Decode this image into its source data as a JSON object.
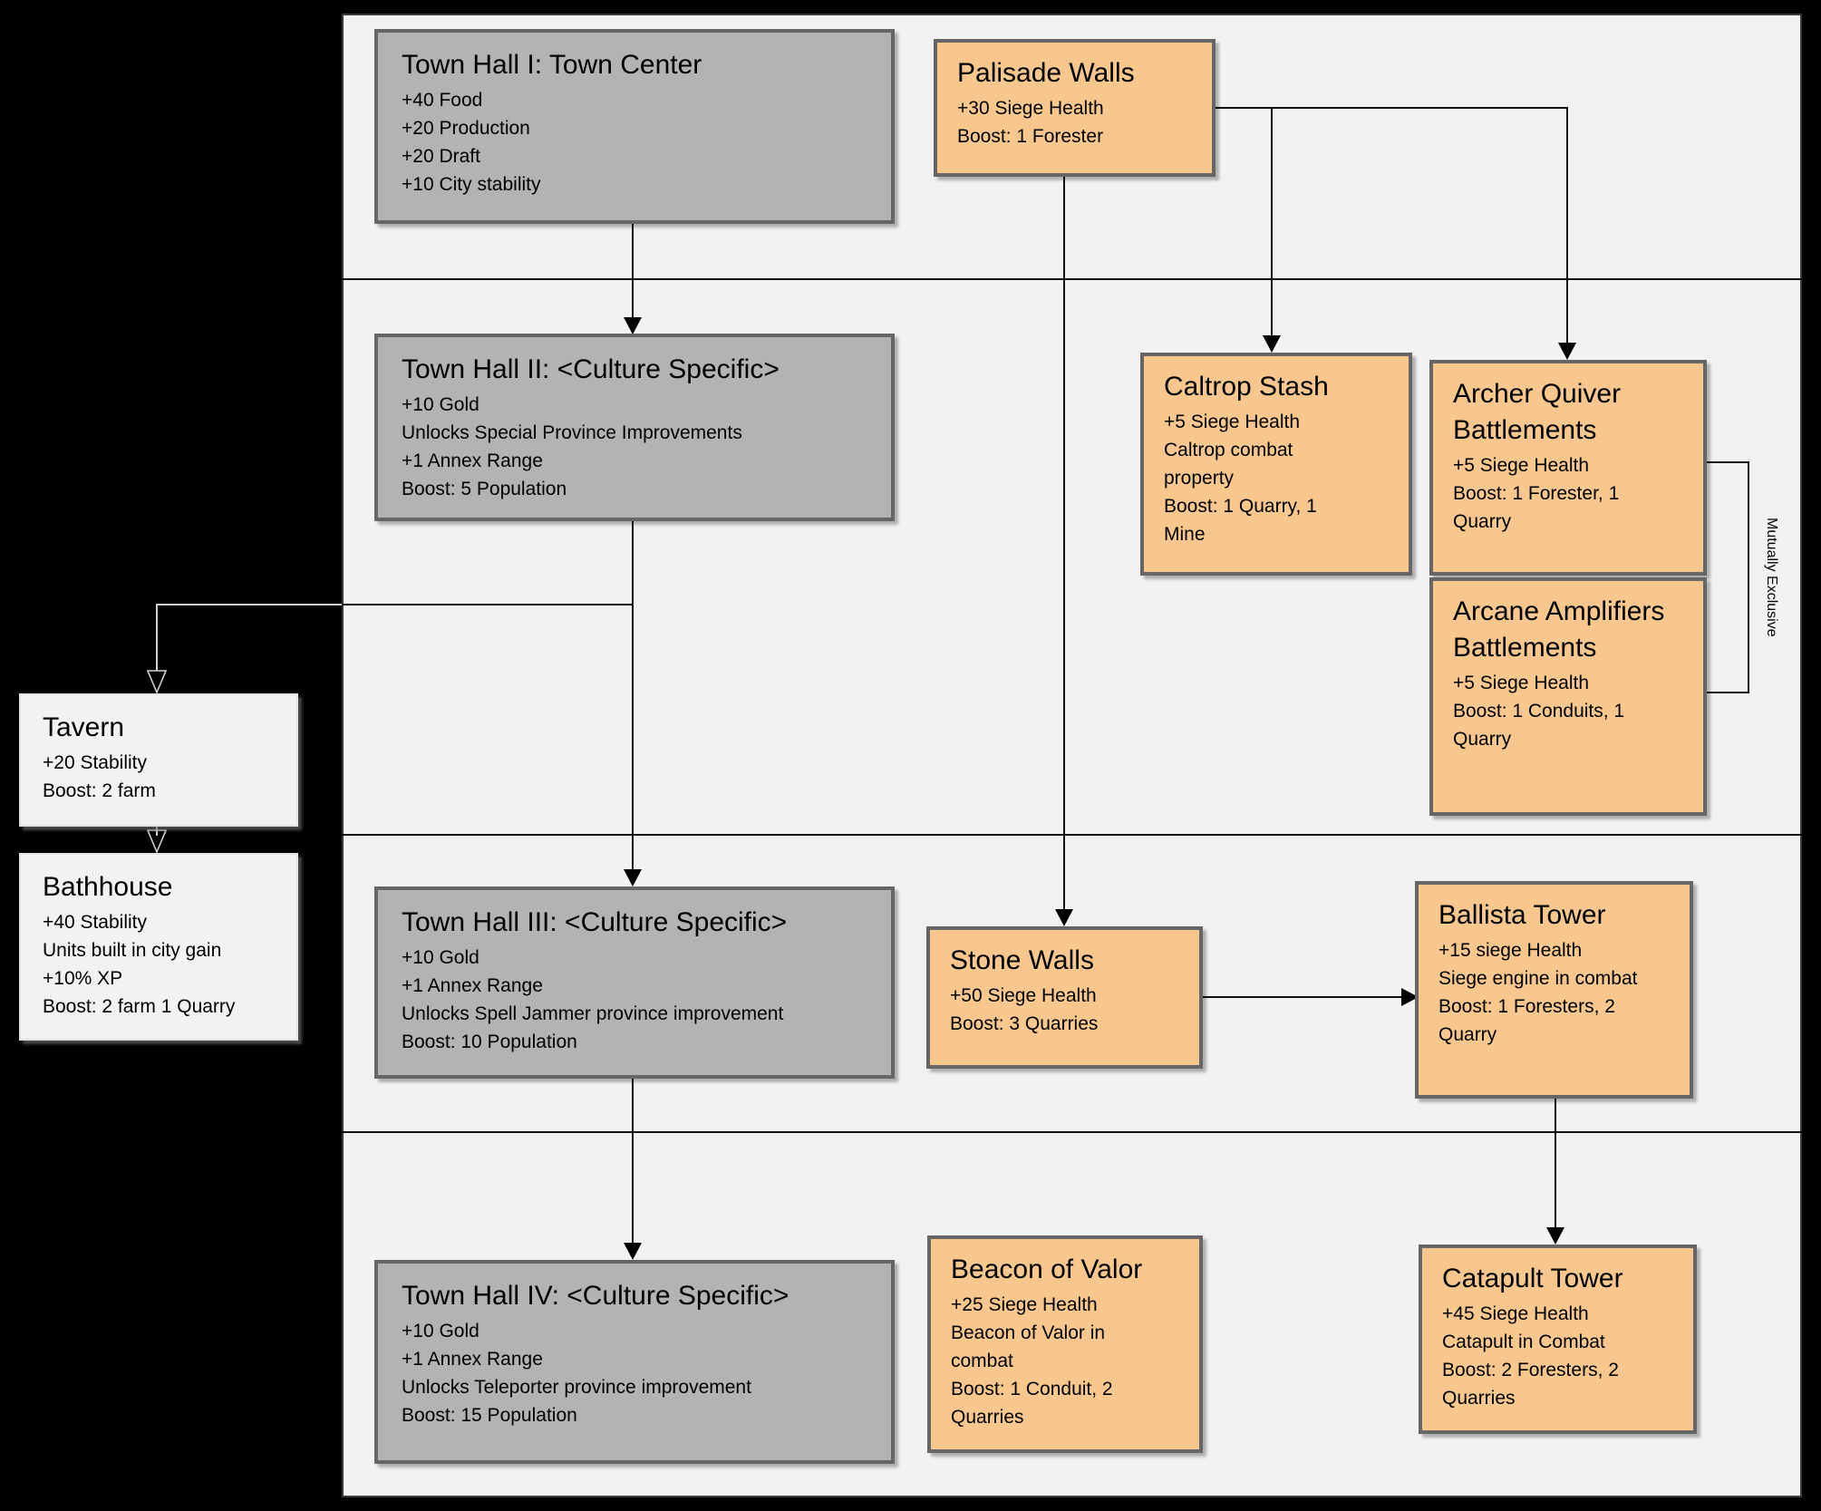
{
  "colors": {
    "background": "#000000",
    "panel": "#f2f2f2",
    "node_gray": "#b3b3b3",
    "node_orange": "#f8c78e",
    "node_light": "#f2f2f2",
    "node_border": "#666666",
    "edge": "#000000",
    "edge_outside_panel": "#cfcfcf"
  },
  "nodes": {
    "town_hall_1": {
      "title": "Town Hall I: Town Center",
      "lines": [
        "+40 Food",
        "+20 Production",
        "+20 Draft",
        "+10 City stability"
      ]
    },
    "palisade_walls": {
      "title": "Palisade Walls",
      "lines": [
        "+30 Siege Health",
        "Boost: 1 Forester"
      ]
    },
    "town_hall_2": {
      "title": "Town Hall II: <Culture Specific>",
      "lines": [
        "+10 Gold",
        "Unlocks Special Province Improvements",
        "+1 Annex Range",
        "Boost: 5 Population"
      ]
    },
    "caltrop_stash": {
      "title": "Caltrop Stash",
      "lines": [
        "+5 Siege Health",
        "Caltrop combat property",
        "Boost: 1 Quarry, 1 Mine"
      ]
    },
    "archer_quiver_battlements": {
      "title": "Archer Quiver Battlements",
      "lines": [
        "+5 Siege Health",
        "Boost: 1 Forester, 1 Quarry"
      ]
    },
    "arcane_amplifiers_battlements": {
      "title": "Arcane Amplifiers Battlements",
      "lines": [
        "+5 Siege Health",
        "Boost: 1 Conduits, 1 Quarry"
      ]
    },
    "tavern": {
      "title": "Tavern",
      "lines": [
        "+20 Stability",
        "Boost: 2 farm"
      ]
    },
    "bathhouse": {
      "title": "Bathhouse",
      "lines": [
        "+40 Stability",
        "Units built in city gain +10% XP",
        "Boost: 2 farm 1 Quarry"
      ]
    },
    "town_hall_3": {
      "title": "Town Hall III: <Culture Specific>",
      "lines": [
        "+10 Gold",
        "+1 Annex Range",
        "Unlocks Spell Jammer province improvement",
        "Boost: 10 Population"
      ]
    },
    "stone_walls": {
      "title": "Stone Walls",
      "lines": [
        "+50 Siege Health",
        "Boost: 3 Quarries"
      ]
    },
    "ballista_tower": {
      "title": "Ballista Tower",
      "lines": [
        "+15 siege Health",
        "Siege engine in combat",
        "Boost: 1 Foresters, 2 Quarry"
      ]
    },
    "town_hall_4": {
      "title": "Town Hall IV: <Culture Specific>",
      "lines": [
        "+10 Gold",
        "+1 Annex Range",
        "Unlocks Teleporter province improvement",
        "Boost: 15 Population"
      ]
    },
    "beacon_of_valor": {
      "title": "Beacon of Valor",
      "lines": [
        "+25 Siege Health",
        "Beacon of Valor in combat",
        "Boost: 1 Conduit, 2 Quarries"
      ]
    },
    "catapult_tower": {
      "title": "Catapult Tower",
      "lines": [
        "+45 Siege Health",
        "Catapult in Combat",
        "Boost: 2 Foresters, 2 Quarries"
      ]
    }
  },
  "annotations": {
    "mutually_exclusive": "Mutually Exclusive"
  }
}
